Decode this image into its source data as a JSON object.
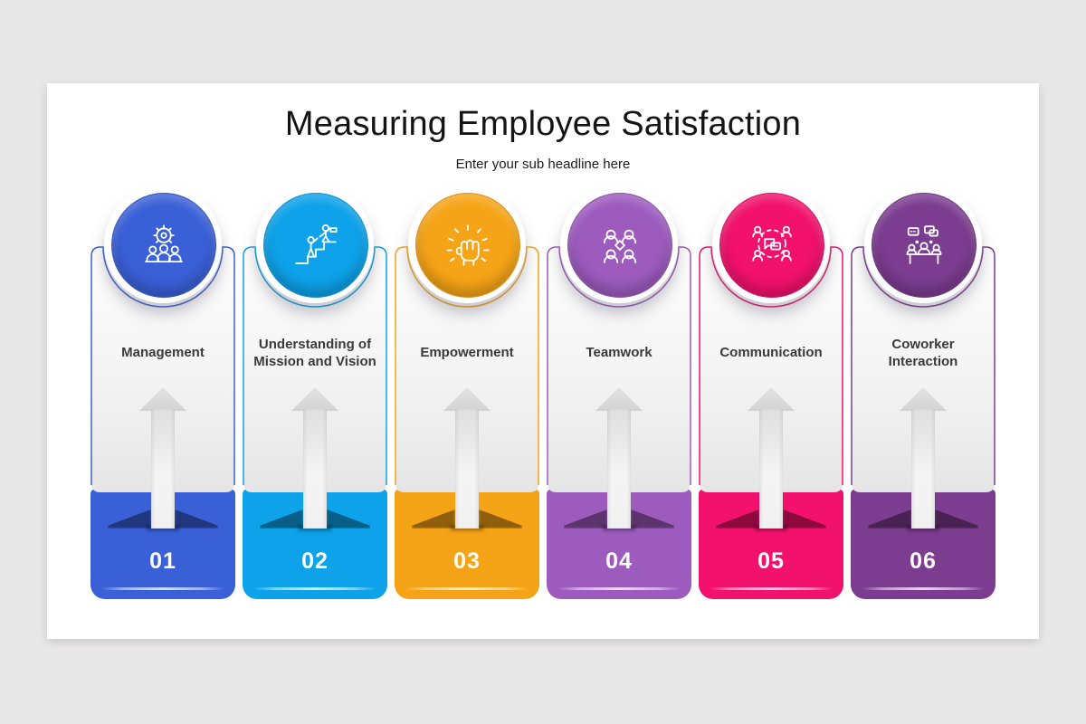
{
  "title": "Measuring Employee Satisfaction",
  "subtitle": "Enter your sub headline here",
  "page_background": "#E9E8E8",
  "slide_background": "#FFFFFF",
  "columns": [
    {
      "number": "01",
      "label": "Management",
      "icon": "management-team-gear-icon",
      "color": "#3A60D8",
      "color_dark": "#1E3CA8"
    },
    {
      "number": "02",
      "label": "Understanding of Mission and Vision",
      "icon": "mission-vision-flag-icon",
      "color": "#0DA2E9",
      "color_dark": "#05679F"
    },
    {
      "number": "03",
      "label": "Empowerment",
      "icon": "empowerment-fist-icon",
      "color": "#F6A417",
      "color_dark": "#A86A03"
    },
    {
      "number": "04",
      "label": "Teamwork",
      "icon": "teamwork-group-icon",
      "color": "#9D5BBE",
      "color_dark": "#5F2F7B"
    },
    {
      "number": "05",
      "label": "Communication",
      "icon": "communication-bubbles-icon",
      "color": "#F2116C",
      "color_dark": "#97063F"
    },
    {
      "number": "06",
      "label": "Coworker Interaction",
      "icon": "coworker-interaction-icon",
      "color": "#7C3C90",
      "color_dark": "#471F55"
    }
  ]
}
